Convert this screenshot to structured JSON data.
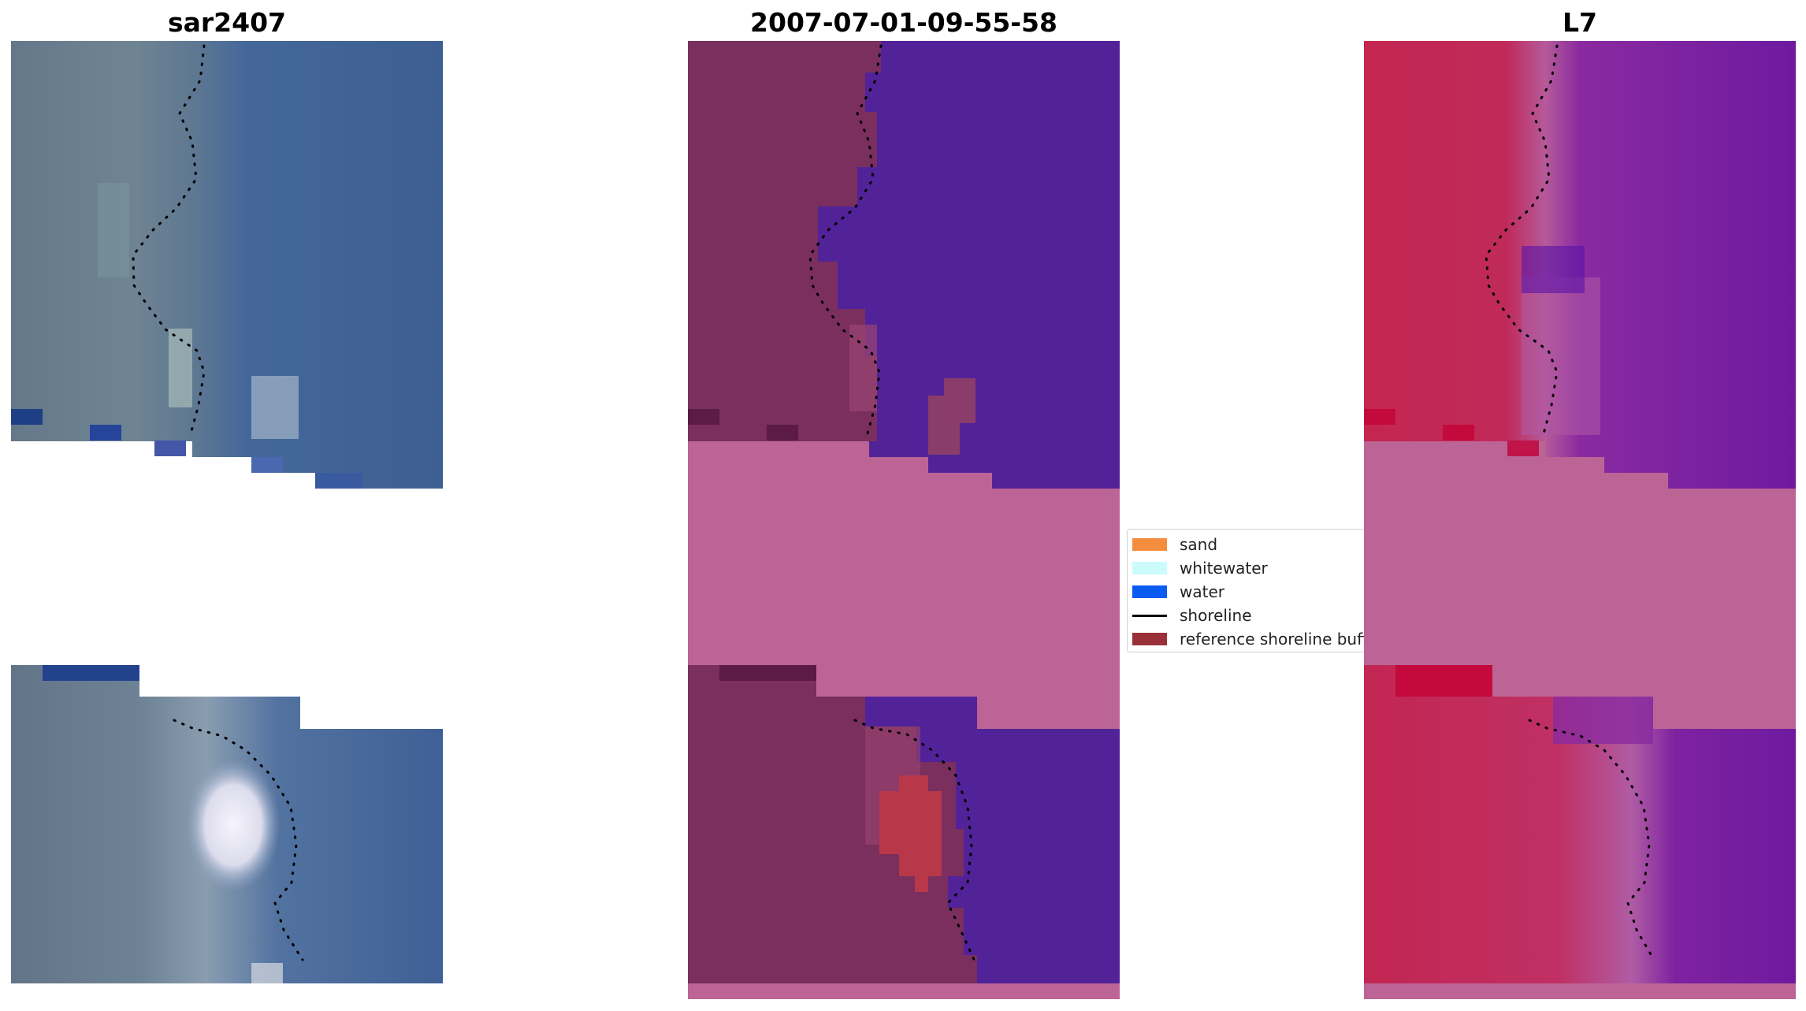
{
  "titles": {
    "left": "sar2407",
    "center": "2007-07-01-09-55-58",
    "right": "L7"
  },
  "legend": {
    "items": [
      {
        "label": "sand",
        "color": "#f58d3e",
        "kind": "patch"
      },
      {
        "label": "whitewater",
        "color": "#ccfbfb",
        "kind": "patch"
      },
      {
        "label": "water",
        "color": "#0a5bf0",
        "kind": "patch"
      },
      {
        "label": "shoreline",
        "color": "#000000",
        "kind": "line"
      },
      {
        "label": "reference shoreline buffer",
        "color": "#9a3038",
        "kind": "patch"
      }
    ]
  },
  "colors": {
    "rgb_land": "#5f7389",
    "rgb_water": "#3c5e90",
    "class_land": "#7a2f5e",
    "class_water": "#522298",
    "class_nodata": "#bc6495",
    "class_sand_buffer": "#b8384a",
    "index_land": "#c42650",
    "index_water": "#6e1aa0",
    "index_nodata": "#bc6495",
    "shoreline": "#000000"
  }
}
